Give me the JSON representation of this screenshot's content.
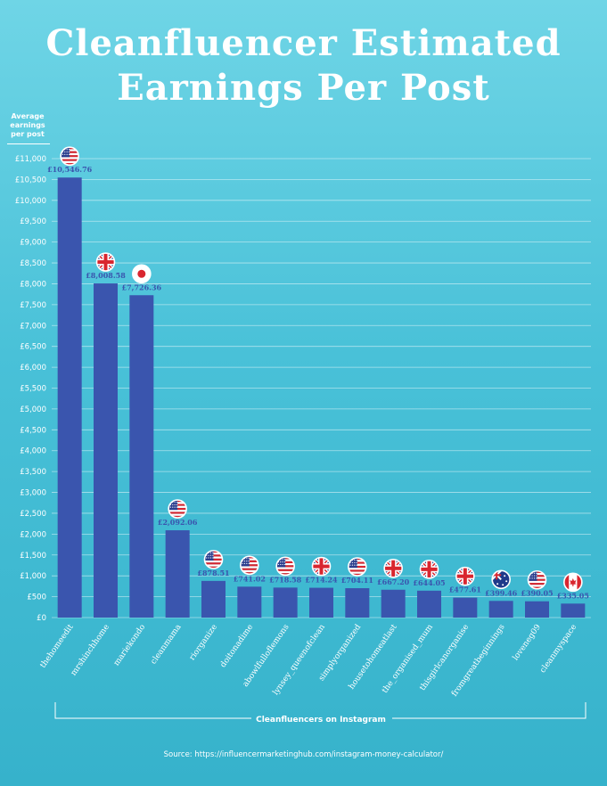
{
  "chart_data": {
    "type": "bar",
    "title": "Cleanfluencer Estimated Earnings Per Post",
    "ylabel": "Average earnings per post",
    "xlabel": "Cleanfluencers on Instagram",
    "ylim": [
      0,
      11000
    ],
    "yticks": [
      0,
      500,
      1000,
      1500,
      2000,
      2500,
      3000,
      3500,
      4000,
      4500,
      5000,
      5500,
      6000,
      6500,
      7000,
      7500,
      8000,
      8500,
      9000,
      9500,
      10000,
      10500,
      11000
    ],
    "ytick_labels": [
      "£0",
      "£500",
      "£1,000",
      "£1,500",
      "£2,000",
      "£2,500",
      "£3,000",
      "£3,500",
      "£4,000",
      "£4,500",
      "£5,000",
      "£5,500",
      "£6,000",
      "£6,500",
      "£7,000",
      "£7,500",
      "£8,000",
      "£8,500",
      "£9,000",
      "£9,500",
      "£10,000",
      "£10,500",
      "£11,000"
    ],
    "categories": [
      "thehomeedit",
      "mrshinchhome",
      "mariekondo",
      "cleanmama",
      "riorganize",
      "doitonadime",
      "abowlfulloflemons",
      "lynsey_queenofclean",
      "simplyorganized",
      "housetohomeatlast",
      "the_organised_mum",
      "thisgirlcanorganise",
      "fromgreatbeginnings",
      "loveneg09",
      "cleanmyspace"
    ],
    "values": [
      10546.76,
      8008.58,
      7726.36,
      2092.06,
      878.51,
      741.02,
      718.58,
      714.24,
      704.11,
      667.2,
      644.05,
      477.61,
      399.46,
      390.05,
      335.05
    ],
    "value_labels": [
      "£10,546.76",
      "£8,008.58",
      "£7,726.36",
      "£2,092.06",
      "£878.51",
      "£741.02",
      "£718.58",
      "£714.24",
      "£704.11",
      "£667.20",
      "£644.05",
      "£477.61",
      "£399.46",
      "£390.05",
      "£335.05"
    ],
    "flags": [
      "us",
      "uk",
      "jp",
      "us",
      "us",
      "us",
      "us",
      "uk",
      "us",
      "uk",
      "uk",
      "uk",
      "au",
      "us",
      "ca"
    ],
    "grid": true,
    "bar_color": "#3a55ae",
    "label_color": "#3a55ae"
  },
  "title_line1": "Cleanfluencer Estimated",
  "title_line2": "Earnings Per Post",
  "ylabel_lines": [
    "Average",
    "earnings",
    "per post"
  ],
  "xlabel_text": "Cleanfluencers on Instagram",
  "source": "Source: https://influencermarketinghub.com/instagram-money-calculator/"
}
